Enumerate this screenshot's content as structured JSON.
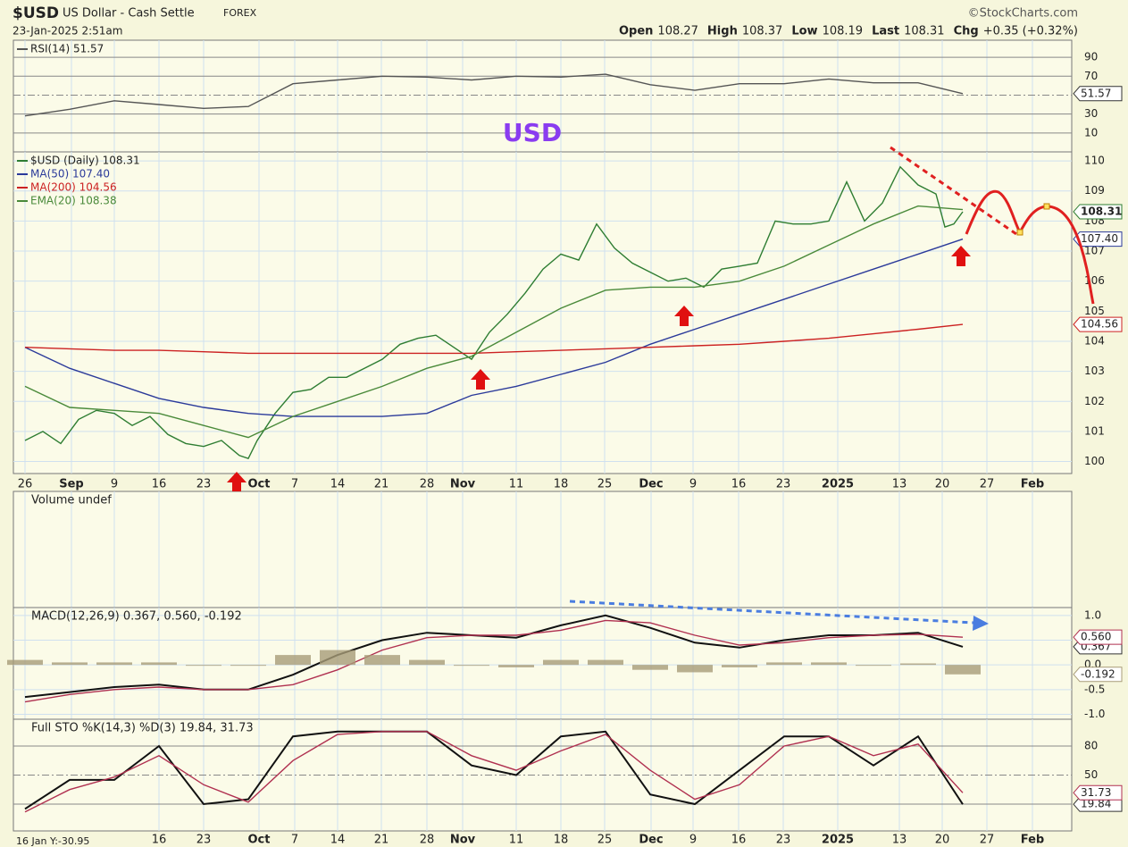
{
  "header": {
    "symbol": "$USD",
    "name": "US Dollar - Cash Settle",
    "exchange": "FOREX",
    "credit": "©StockCharts.com",
    "date": "23-Jan-2025 2:51am",
    "quote": [
      {
        "label": "Open",
        "value": 108.27
      },
      {
        "label": "High",
        "value": 108.37
      },
      {
        "label": "Low",
        "value": 108.19
      },
      {
        "label": "Last",
        "value": 108.31
      },
      {
        "label": "Chg",
        "value": "+0.35 (+0.32%)"
      }
    ],
    "cursor": "16 Jan Y:-30.95"
  },
  "chart_data": [
    {
      "type": "line",
      "xlim": [
        -1.3,
        117.2
      ],
      "ylim": [
        -10,
        108
      ],
      "yticks": [
        10,
        30,
        50,
        70,
        90
      ],
      "grid": true,
      "annotation": "USD",
      "series": [
        {
          "name": "RSI(14) 51.57",
          "color": "#555555",
          "end_label": true,
          "x": [
            0,
            5,
            10,
            15,
            20,
            25,
            30,
            35,
            40,
            45,
            50,
            55,
            60,
            65,
            70,
            75,
            80,
            85,
            90,
            95,
            100,
            105
          ],
          "values": [
            28,
            35,
            44,
            40,
            36,
            38,
            62,
            66,
            70,
            69,
            66,
            70,
            69,
            72,
            61,
            55,
            62,
            62,
            67,
            63,
            63,
            51.57
          ]
        }
      ]
    },
    {
      "type": "line",
      "xlim": [
        -1.3,
        117.2
      ],
      "ylim": [
        99.6,
        110.3
      ],
      "yticks": [
        100,
        101,
        102,
        103,
        104,
        105,
        106,
        107,
        108,
        109,
        110
      ],
      "grid": true,
      "xticks": [
        {
          "value": 0,
          "label": "26"
        },
        {
          "value": 5.2,
          "label": "Sep"
        },
        {
          "value": 10,
          "label": "9"
        },
        {
          "value": 15,
          "label": "16"
        },
        {
          "value": 20,
          "label": "23"
        },
        {
          "value": 26.2,
          "label": "Oct"
        },
        {
          "value": 30.2,
          "label": "7"
        },
        {
          "value": 35,
          "label": "14"
        },
        {
          "value": 39.9,
          "label": "21"
        },
        {
          "value": 45,
          "label": "28"
        },
        {
          "value": 49,
          "label": "Nov"
        },
        {
          "value": 55,
          "label": "11"
        },
        {
          "value": 60,
          "label": "18"
        },
        {
          "value": 64.9,
          "label": "25"
        },
        {
          "value": 70.1,
          "label": "Dec"
        },
        {
          "value": 74.8,
          "label": "9"
        },
        {
          "value": 79.9,
          "label": "16"
        },
        {
          "value": 84.9,
          "label": "23"
        },
        {
          "value": 91,
          "label": "2025"
        },
        {
          "value": 97.9,
          "label": "13"
        },
        {
          "value": 102.7,
          "label": "20"
        },
        {
          "value": 107.7,
          "label": "27"
        },
        {
          "value": 112.8,
          "label": "Feb"
        }
      ],
      "series": [
        {
          "name": "$USD (Daily) 108.31",
          "color": "#2e7d32",
          "end_label": true,
          "x": [
            0,
            2,
            4,
            6,
            8,
            10,
            12,
            14,
            16,
            18,
            20,
            22,
            24,
            25,
            26,
            28,
            30,
            32,
            34,
            36,
            38,
            40,
            42,
            44,
            46,
            48,
            50,
            52,
            54,
            56,
            58,
            60,
            62,
            64,
            66,
            68,
            70,
            72,
            74,
            76,
            78,
            80,
            82,
            84,
            86,
            88,
            90,
            92,
            94,
            96,
            98,
            100,
            102,
            103,
            104,
            105
          ],
          "values": [
            100.7,
            101.0,
            100.6,
            101.4,
            101.7,
            101.6,
            101.2,
            101.5,
            100.9,
            100.6,
            100.5,
            100.7,
            100.2,
            100.1,
            100.7,
            101.6,
            102.3,
            102.4,
            102.8,
            102.8,
            103.1,
            103.4,
            103.9,
            104.1,
            104.2,
            103.8,
            103.4,
            104.3,
            104.9,
            105.6,
            106.4,
            106.9,
            106.7,
            107.9,
            107.1,
            106.6,
            106.3,
            106.0,
            106.1,
            105.8,
            106.4,
            106.5,
            106.6,
            108.0,
            107.9,
            107.9,
            108.0,
            109.3,
            108.0,
            108.6,
            109.8,
            109.2,
            108.9,
            107.8,
            107.9,
            108.31
          ]
        },
        {
          "name": "MA(50) 107.40",
          "color": "#2b3a9a",
          "end_label": true,
          "x": [
            0,
            5,
            10,
            15,
            20,
            25,
            30,
            35,
            40,
            45,
            50,
            55,
            60,
            65,
            70,
            75,
            80,
            85,
            90,
            95,
            100,
            105
          ],
          "values": [
            103.8,
            103.1,
            102.6,
            102.1,
            101.8,
            101.6,
            101.5,
            101.5,
            101.5,
            101.6,
            102.2,
            102.5,
            102.9,
            103.3,
            103.9,
            104.4,
            104.9,
            105.4,
            105.9,
            106.4,
            106.9,
            107.4
          ],
          "value_labels": [
            null,
            null,
            null,
            null,
            null,
            null,
            null,
            null,
            null,
            null,
            null,
            null,
            null,
            null,
            null,
            null,
            null,
            null,
            null,
            null,
            null,
            "107.40"
          ]
        },
        {
          "name": "MA(200) 104.56",
          "color": "#cc2222",
          "end_label": true,
          "x": [
            0,
            5,
            10,
            15,
            20,
            25,
            30,
            35,
            40,
            45,
            50,
            55,
            60,
            65,
            70,
            75,
            80,
            85,
            90,
            95,
            100,
            105
          ],
          "values": [
            103.8,
            103.75,
            103.7,
            103.7,
            103.65,
            103.6,
            103.6,
            103.6,
            103.6,
            103.6,
            103.6,
            103.65,
            103.7,
            103.75,
            103.8,
            103.85,
            103.9,
            104.0,
            104.1,
            104.25,
            104.4,
            104.56
          ]
        },
        {
          "name": "EMA(20) 108.38",
          "color": "#4a8a3a",
          "x": [
            0,
            5,
            10,
            15,
            20,
            25,
            30,
            35,
            40,
            45,
            50,
            55,
            60,
            65,
            70,
            75,
            80,
            85,
            90,
            95,
            100,
            105
          ],
          "values": [
            102.5,
            101.8,
            101.7,
            101.6,
            101.2,
            100.8,
            101.5,
            102.0,
            102.5,
            103.1,
            103.5,
            104.3,
            105.1,
            105.7,
            105.8,
            105.8,
            106.0,
            106.5,
            107.2,
            107.9,
            108.5,
            108.38
          ]
        }
      ]
    },
    {
      "type": "bar",
      "xlim": [
        -1.3,
        117.2
      ],
      "title": "Volume undef",
      "series": []
    },
    {
      "type": "line",
      "xlim": [
        -1.3,
        117.2
      ],
      "ylim": [
        -1.1,
        1.16
      ],
      "grid": true,
      "title": "MACD(12,26,9) 0.367, 0.560, -0.192",
      "yticks": [
        {
          "value": -1,
          "label": "-1.0"
        },
        -0.5,
        {
          "value": 0,
          "label": "0.0"
        },
        0.5,
        {
          "value": 1,
          "label": "1.0"
        }
      ],
      "series": [
        {
          "color": "#111111",
          "end_label": true,
          "width": 2,
          "x": [
            0,
            5,
            10,
            15,
            20,
            25,
            30,
            35,
            40,
            45,
            50,
            55,
            60,
            65,
            70,
            75,
            80,
            85,
            90,
            95,
            100,
            105
          ],
          "values": [
            -0.65,
            -0.55,
            -0.45,
            -0.4,
            -0.5,
            -0.5,
            -0.2,
            0.2,
            0.5,
            0.65,
            0.6,
            0.55,
            0.8,
            1.0,
            0.75,
            0.45,
            0.35,
            0.5,
            0.6,
            0.6,
            0.65,
            0.367
          ]
        },
        {
          "color": "#b03050",
          "end_label": true,
          "x": [
            0,
            5,
            10,
            15,
            20,
            25,
            30,
            35,
            40,
            45,
            50,
            55,
            60,
            65,
            70,
            75,
            80,
            85,
            90,
            95,
            100,
            105
          ],
          "values": [
            -0.75,
            -0.6,
            -0.5,
            -0.45,
            -0.5,
            -0.5,
            -0.4,
            -0.1,
            0.3,
            0.55,
            0.6,
            0.6,
            0.7,
            0.9,
            0.85,
            0.6,
            0.4,
            0.45,
            0.55,
            0.6,
            0.62,
            0.56
          ],
          "value_labels": [
            null,
            null,
            null,
            null,
            null,
            null,
            null,
            null,
            null,
            null,
            null,
            null,
            null,
            null,
            null,
            null,
            null,
            null,
            null,
            null,
            null,
            "0.560"
          ]
        },
        {
          "color": "#a89c78",
          "style": "bar",
          "end_label": true,
          "x": [
            0,
            5,
            10,
            15,
            20,
            25,
            30,
            35,
            40,
            45,
            50,
            55,
            60,
            65,
            70,
            75,
            80,
            85,
            90,
            95,
            100,
            105
          ],
          "values": [
            0.1,
            0.05,
            0.05,
            0.05,
            0,
            0,
            0.2,
            0.3,
            0.2,
            0.1,
            0,
            -0.05,
            0.1,
            0.1,
            -0.1,
            -0.15,
            -0.05,
            0.05,
            0.05,
            0,
            0.03,
            -0.192
          ]
        }
      ]
    },
    {
      "type": "line",
      "xlim": [
        -1.3,
        117.2
      ],
      "ylim": [
        -7.7,
        107.7
      ],
      "yticks": [
        20,
        50,
        80
      ],
      "grid": true,
      "title": "Full STO %K(14,3) %D(3) 19.84, 31.73",
      "xticks": [
        {
          "value": 15,
          "label": "16"
        },
        {
          "value": 20,
          "label": "23"
        },
        {
          "value": 26.2,
          "label": "Oct"
        },
        {
          "value": 30.2,
          "label": "7"
        },
        {
          "value": 35,
          "label": "14"
        },
        {
          "value": 39.9,
          "label": "21"
        },
        {
          "value": 45,
          "label": "28"
        },
        {
          "value": 49,
          "label": "Nov"
        },
        {
          "value": 55,
          "label": "11"
        },
        {
          "value": 60,
          "label": "18"
        },
        {
          "value": 64.9,
          "label": "25"
        },
        {
          "value": 70.1,
          "label": "Dec"
        },
        {
          "value": 74.8,
          "label": "9"
        },
        {
          "value": 79.9,
          "label": "16"
        },
        {
          "value": 84.9,
          "label": "23"
        },
        {
          "value": 91,
          "label": "2025"
        },
        {
          "value": 97.9,
          "label": "13"
        },
        {
          "value": 102.7,
          "label": "20"
        },
        {
          "value": 107.7,
          "label": "27"
        },
        {
          "value": 112.8,
          "label": "Feb"
        }
      ],
      "series": [
        {
          "color": "#111111",
          "end_label": true,
          "width": 2,
          "x": [
            0,
            5,
            10,
            15,
            20,
            25,
            30,
            35,
            40,
            45,
            50,
            55,
            60,
            65,
            70,
            75,
            80,
            85,
            90,
            95,
            100,
            105
          ],
          "values": [
            15,
            45,
            45,
            80,
            20,
            25,
            90,
            95,
            95,
            95,
            60,
            50,
            90,
            95,
            30,
            20,
            55,
            90,
            90,
            60,
            90,
            19.84
          ]
        },
        {
          "color": "#b03050",
          "end_label": true,
          "x": [
            0,
            5,
            10,
            15,
            20,
            25,
            30,
            35,
            40,
            45,
            50,
            55,
            60,
            65,
            70,
            75,
            80,
            85,
            90,
            95,
            100,
            105
          ],
          "values": [
            12,
            35,
            48,
            70,
            40,
            22,
            65,
            92,
            95,
            95,
            70,
            55,
            75,
            92,
            55,
            25,
            40,
            80,
            90,
            70,
            82,
            31.73
          ]
        }
      ]
    }
  ]
}
